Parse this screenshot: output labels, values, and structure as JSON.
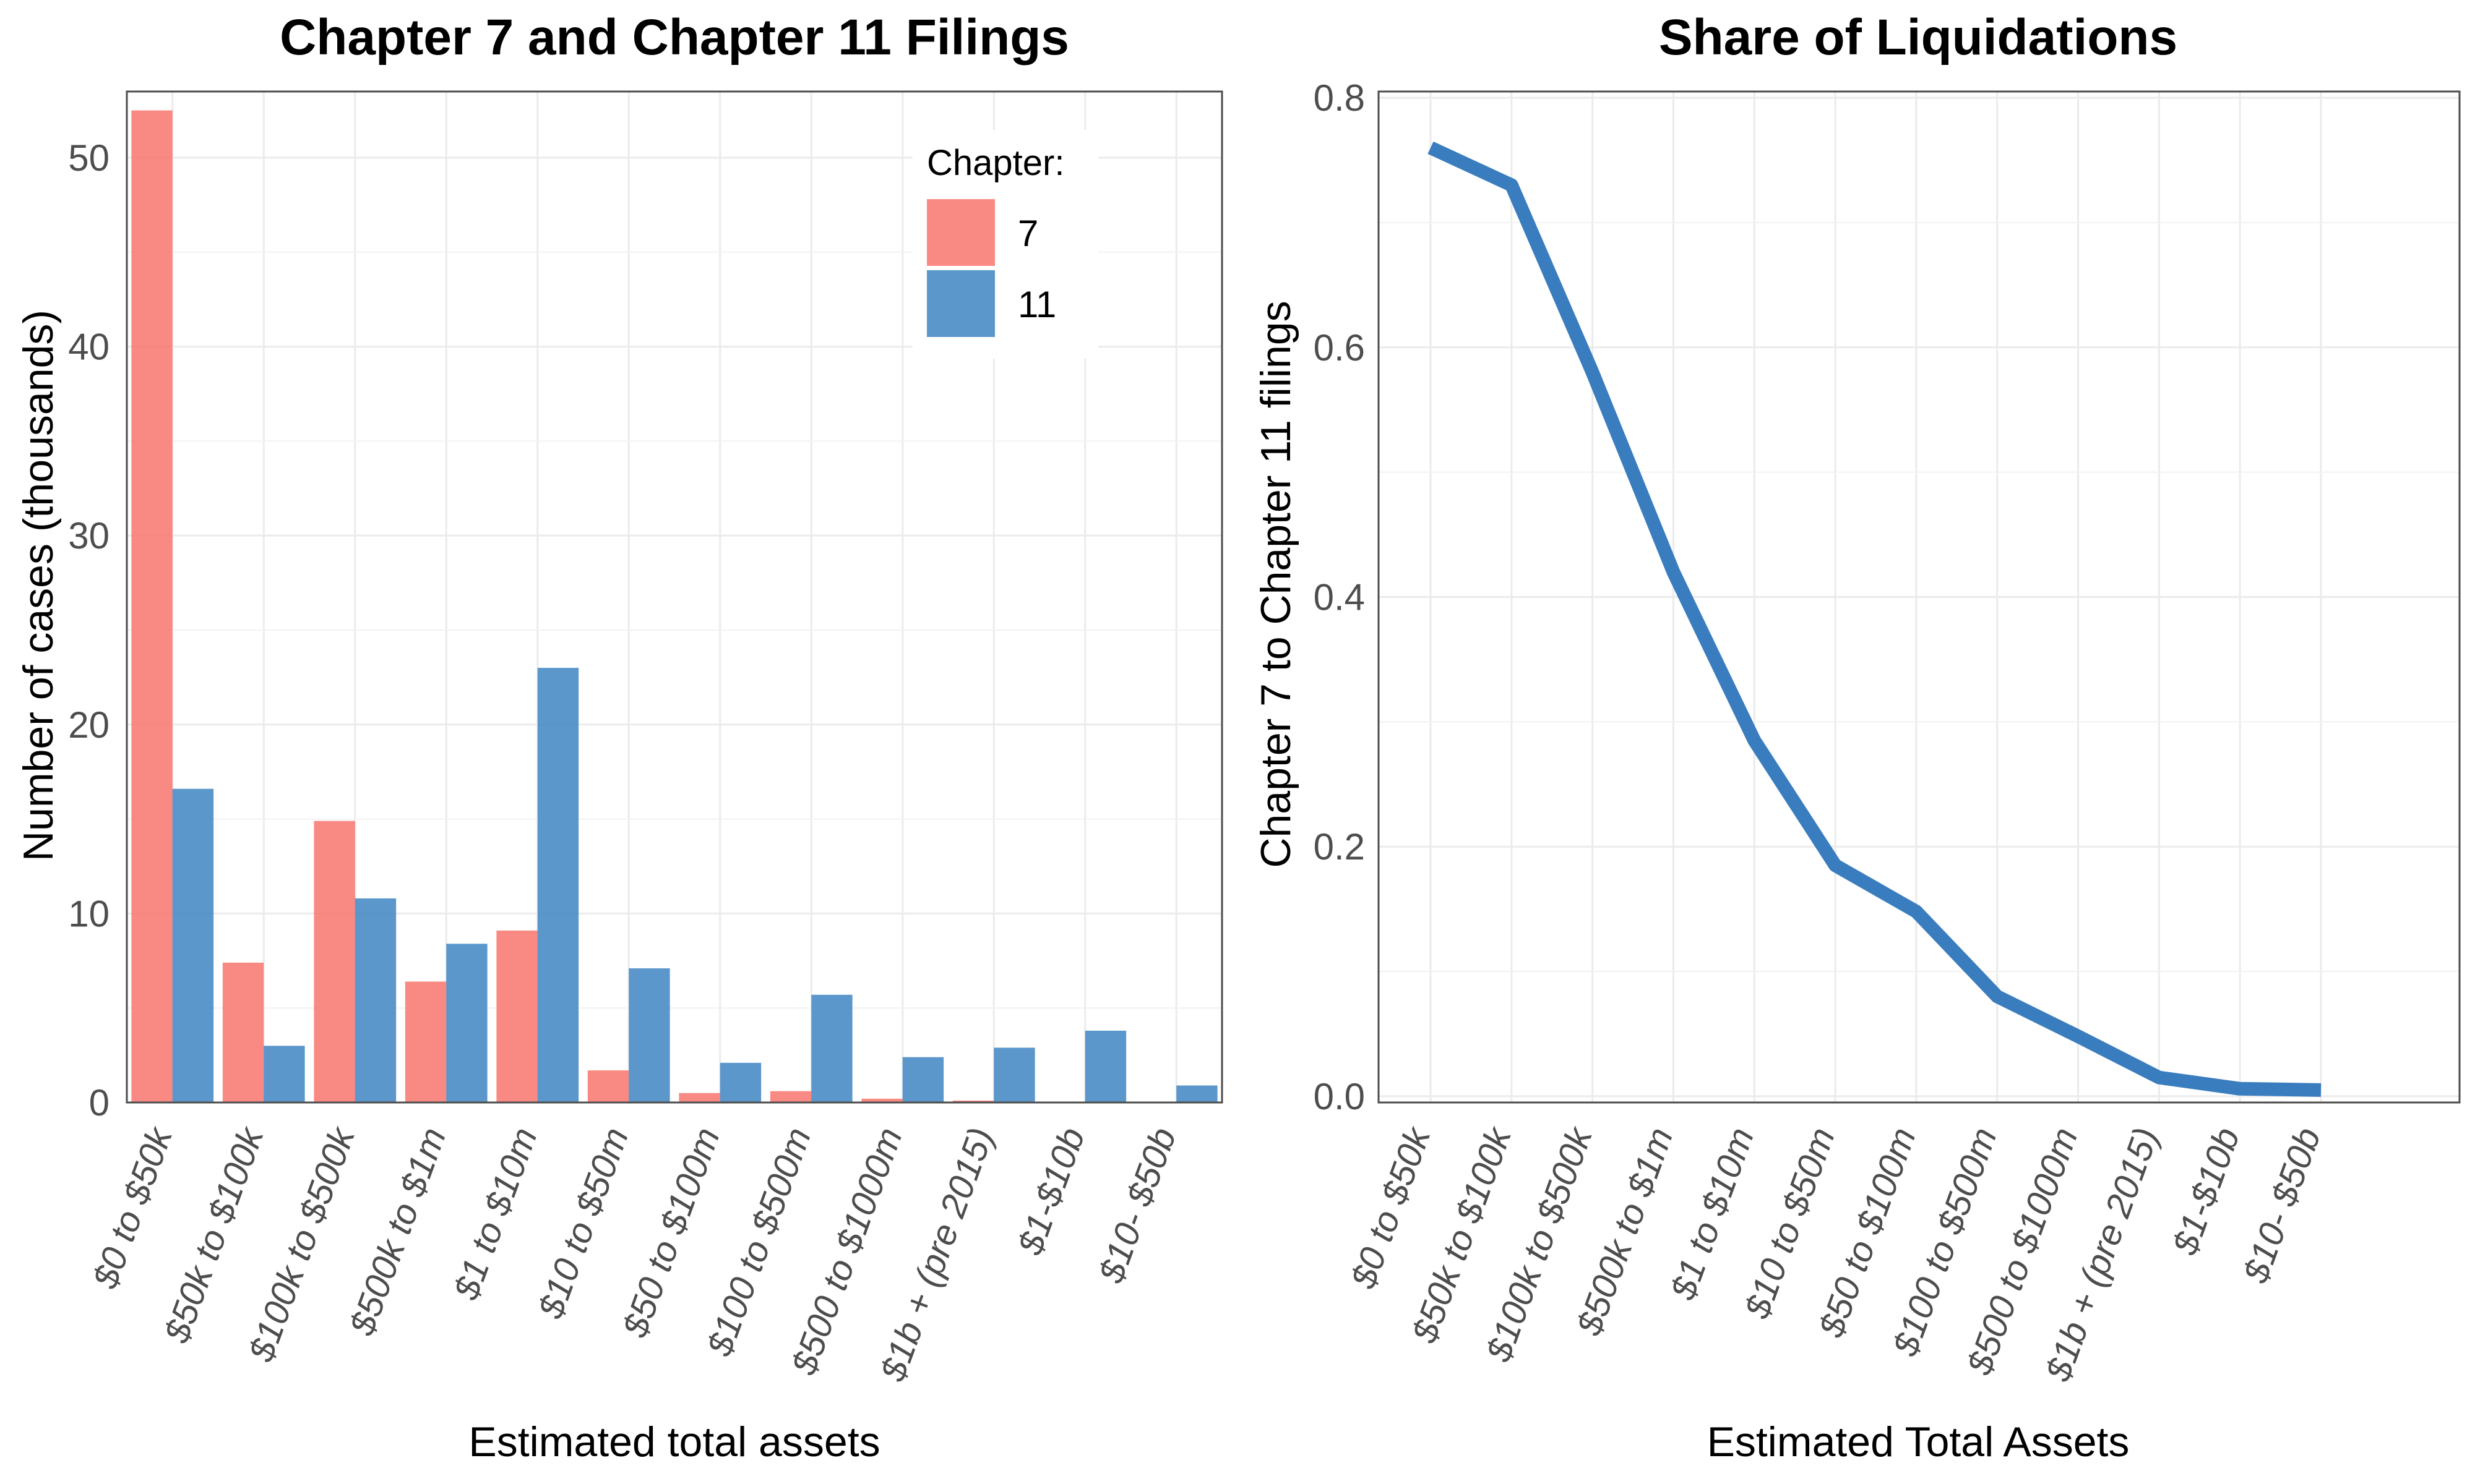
{
  "chart_data": [
    {
      "type": "bar",
      "title": "Chapter 7 and Chapter 11 Filings",
      "xlabel": "Estimated total assets",
      "ylabel": "Number of cases (thousands)",
      "ylim": [
        0,
        53.5
      ],
      "yticks": [
        0,
        10,
        20,
        30,
        40,
        50
      ],
      "grid": true,
      "legend_position": "top-right",
      "legend_title": "Chapter:",
      "categories": [
        "$0 to $50k",
        "$50k to $100k",
        "$100k to $500k",
        "$500k to $1m",
        "$1 to $10m",
        "$10 to $50m",
        "$50 to $100m",
        "$100 to $500m",
        "$500 to $1000m",
        "$1b + (pre 2015)",
        "$1-$10b",
        "$10- $50b"
      ],
      "series": [
        {
          "name": "7",
          "color": "#F8766D",
          "values": [
            52.5,
            7.4,
            14.9,
            6.4,
            9.1,
            1.7,
            0.5,
            0.6,
            0.2,
            0.1,
            0,
            0
          ]
        },
        {
          "name": "11",
          "color": "#3F85C2",
          "values": [
            16.6,
            3.0,
            10.8,
            8.4,
            23.0,
            7.1,
            2.1,
            5.7,
            2.4,
            2.9,
            3.8,
            0.9
          ]
        }
      ]
    },
    {
      "type": "line",
      "title": "Share of Liquidations",
      "xlabel": "Estimated Total Assets",
      "ylabel": "Chapter 7 to Chapter 11 filings",
      "ylim": [
        -0.005,
        0.805
      ],
      "yticks": [
        "0.0",
        "0.2",
        "0.4",
        "0.6",
        "0.8"
      ],
      "grid": true,
      "categories": [
        "$0 to $50k",
        "$50k to $100k",
        "$100k to $500k",
        "$500k to $1m",
        "$1 to $10m",
        "$10 to $50m",
        "$50 to $100m",
        "$100 to $500m",
        "$500 to $1000m",
        "$1b + (pre 2015)",
        "$1-$10b",
        "$10- $50b"
      ],
      "series": [
        {
          "color": "#3A7DBF",
          "values": [
            0.76,
            0.73,
            0.58,
            0.42,
            0.285,
            0.185,
            0.148,
            0.08,
            0.048,
            0.015,
            0.006,
            0.005
          ]
        }
      ]
    }
  ]
}
